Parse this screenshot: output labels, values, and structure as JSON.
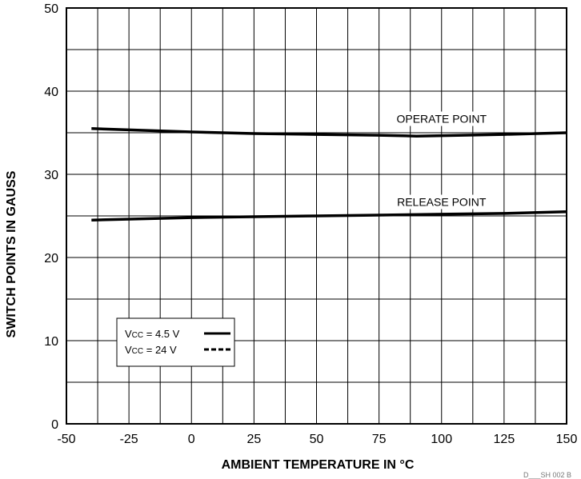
{
  "chart_data": {
    "type": "line",
    "title": "",
    "xlabel": "AMBIENT TEMPERATURE IN °C",
    "ylabel": "SWITCH POINTS IN GAUSS",
    "xlim": [
      -50,
      150
    ],
    "ylim": [
      0,
      50
    ],
    "x_ticks": [
      "-50",
      "-25",
      "0",
      "25",
      "50",
      "75",
      "100",
      "125",
      "150"
    ],
    "y_ticks": [
      "0",
      "10",
      "20",
      "30",
      "40",
      "50"
    ],
    "grid": true,
    "curves": [
      {
        "label": "OPERATE POINT",
        "points": [
          [
            -40,
            35.5
          ],
          [
            0,
            35.1
          ],
          [
            25,
            34.9
          ],
          [
            50,
            34.8
          ],
          [
            75,
            34.7
          ],
          [
            90,
            34.6
          ],
          [
            125,
            34.8
          ],
          [
            150,
            35.0
          ]
        ]
      },
      {
        "label": "RELEASE POINT",
        "points": [
          [
            -40,
            24.5
          ],
          [
            0,
            24.8
          ],
          [
            25,
            24.9
          ],
          [
            50,
            25.0
          ],
          [
            75,
            25.1
          ],
          [
            100,
            25.2
          ],
          [
            125,
            25.3
          ],
          [
            150,
            25.5
          ]
        ]
      }
    ],
    "legend": {
      "placement": "bottom-left",
      "entries": [
        {
          "prefix": "V",
          "subscript": "CC",
          "suffix": " = 4.5 V",
          "style": "solid"
        },
        {
          "prefix": "V",
          "subscript": "CC",
          "suffix": " = 24 V",
          "style": "dashed"
        }
      ]
    },
    "footnote": "D___SH 002 B"
  }
}
